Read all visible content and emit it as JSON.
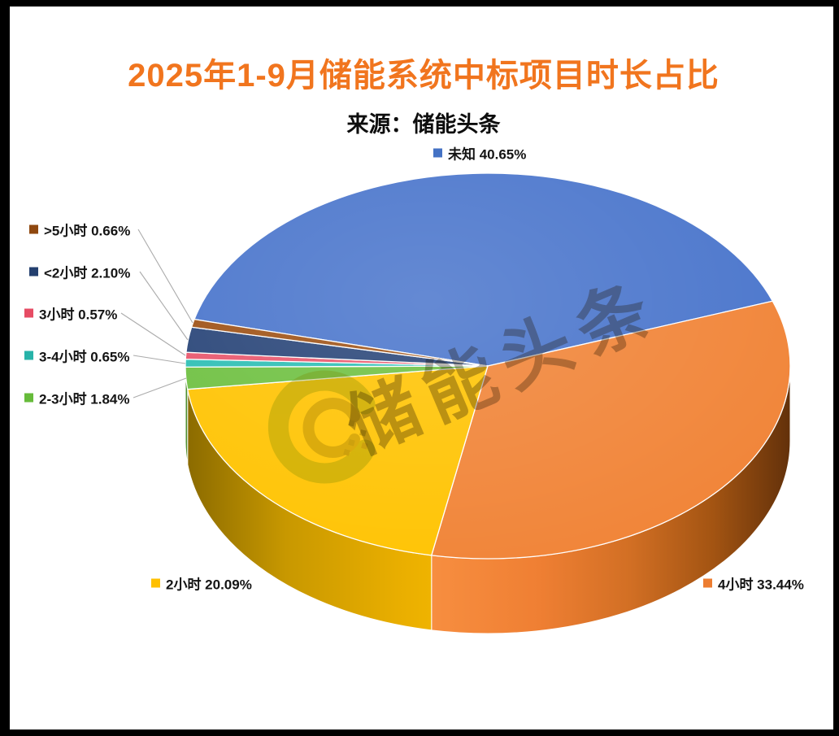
{
  "title": "2025年1-9月储能系统中标项目时长占比",
  "subtitle": "来源：储能头条",
  "watermark": {
    "text": "储能头条"
  },
  "style": {
    "title_color": "#F1751E",
    "background": "#FFFFFF",
    "frame_color": "#000000",
    "leader_line_color": "#ABABAB"
  },
  "chart_data": {
    "type": "pie",
    "variant": "3d",
    "title": "2025年1-9月储能系统中标项目时长占比",
    "source": "来源：储能头条",
    "start_angle_deg": 284,
    "direction": "clockwise",
    "label_format": "name value%",
    "legend_position": "callout-labels",
    "slices": [
      {
        "label": "未知",
        "value": 40.65,
        "display": "未知 40.65%",
        "color": "#4B76CC",
        "marker": "#4472C4",
        "wall": "#33518F"
      },
      {
        "label": "4小时",
        "value": 33.44,
        "display": "4小时 33.44%",
        "color": "#F18539",
        "marker": "#ED7D31",
        "wall": "gradOrangeWall"
      },
      {
        "label": "2小时",
        "value": 20.09,
        "display": "2小时 20.09%",
        "color": "#FFC405",
        "marker": "#FFC000",
        "wall": "gradYellowWall"
      },
      {
        "label": "2-3小时",
        "value": 1.84,
        "display": "2-3小时 1.84%",
        "color": "#70C143",
        "marker": "#66BB3A",
        "wall": "#4F8F2F"
      },
      {
        "label": "3-4小时",
        "value": 0.65,
        "display": "3-4小时 0.65%",
        "color": "#2FBFB5",
        "marker": "#27B3A9",
        "wall": "#1F8F87"
      },
      {
        "label": "3小时",
        "value": 0.57,
        "display": "3小时 0.57%",
        "color": "#E9586E",
        "marker": "#E64C64",
        "wall": "#B03448"
      },
      {
        "label": "<2小时",
        "value": 2.1,
        "display": "<2小时 2.10%",
        "color": "#2A4679",
        "marker": "#24406F",
        "wall": "#1C3054"
      },
      {
        "label": ">5小时",
        "value": 0.66,
        "display": ">5小时 0.66%",
        "color": "#9F5317",
        "marker": "#8F480F",
        "wall": "#6E3808"
      }
    ]
  }
}
